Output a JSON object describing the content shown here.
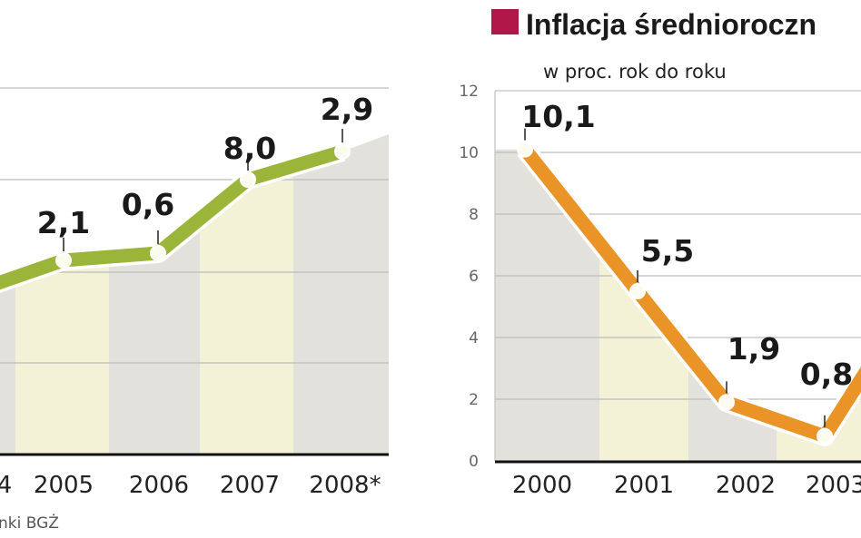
{
  "chart_data": [
    {
      "type": "line",
      "categories": [
        "4",
        "2005",
        "2006",
        "2007",
        "2008*"
      ],
      "values": [
        null,
        2.1,
        0.6,
        8.0,
        2.9
      ],
      "data_labels": [
        "",
        "2,1",
        "0,6",
        "8,0",
        "2,9"
      ],
      "highlight_label_color": "#b0184a",
      "line_color": "#9bb53a",
      "source": "nki BGŻ",
      "grid": true
    },
    {
      "type": "line",
      "title": "Inflacja średnioroczn",
      "subtitle": "w proc. rok do roku",
      "categories": [
        "2000",
        "2001",
        "2002",
        "2003"
      ],
      "values": [
        10.1,
        5.5,
        1.9,
        0.8
      ],
      "data_labels": [
        "10,1",
        "5,5",
        "1,9",
        "0,8"
      ],
      "ylim": [
        0,
        12
      ],
      "yticks": [
        "0",
        "2",
        "4",
        "6",
        "8",
        "10",
        "12"
      ],
      "line_color": "#ea9326",
      "title_marker_color": "#b0184a",
      "grid": true
    }
  ]
}
